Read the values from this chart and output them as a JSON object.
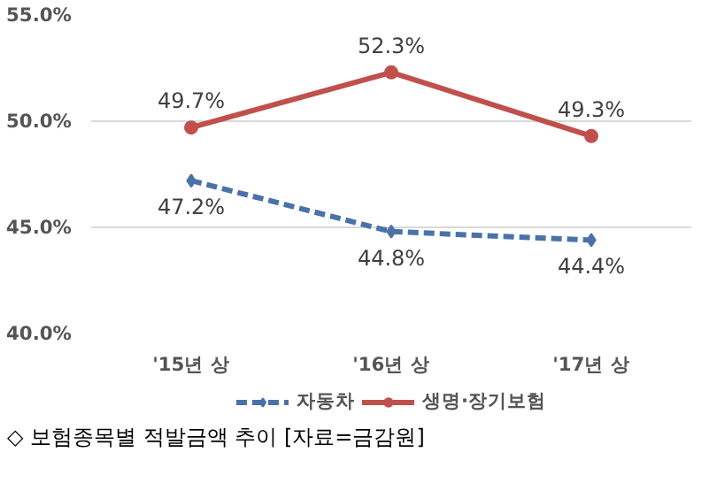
{
  "chart_data": {
    "type": "line",
    "categories": [
      "'15년 상",
      "'16년 상",
      "'17년 상"
    ],
    "series": [
      {
        "name": "자동차",
        "color": "#4a72a8",
        "values": [
          47.2,
          44.8,
          44.4
        ],
        "value_labels": [
          "47.2%",
          "44.8%",
          "44.4%"
        ],
        "line_style": "dashed",
        "marker": "diamond"
      },
      {
        "name": "생명·장기보험",
        "color": "#c0504d",
        "values": [
          49.7,
          52.3,
          49.3
        ],
        "value_labels": [
          "49.7%",
          "52.3%",
          "49.3%"
        ],
        "line_style": "solid",
        "marker": "circle"
      }
    ],
    "ylim": [
      40,
      55
    ],
    "yticks": [
      {
        "value": 40,
        "label": "40.0%"
      },
      {
        "value": 45,
        "label": "45.0%"
      },
      {
        "value": 50,
        "label": "50.0%"
      },
      {
        "value": 55,
        "label": "55.0%"
      }
    ],
    "grid": "y",
    "legend": "bottom",
    "data_labels": true,
    "annotations": [
      "◇ 보험종목별 적발금액 추이 [자료=금감원]"
    ]
  }
}
